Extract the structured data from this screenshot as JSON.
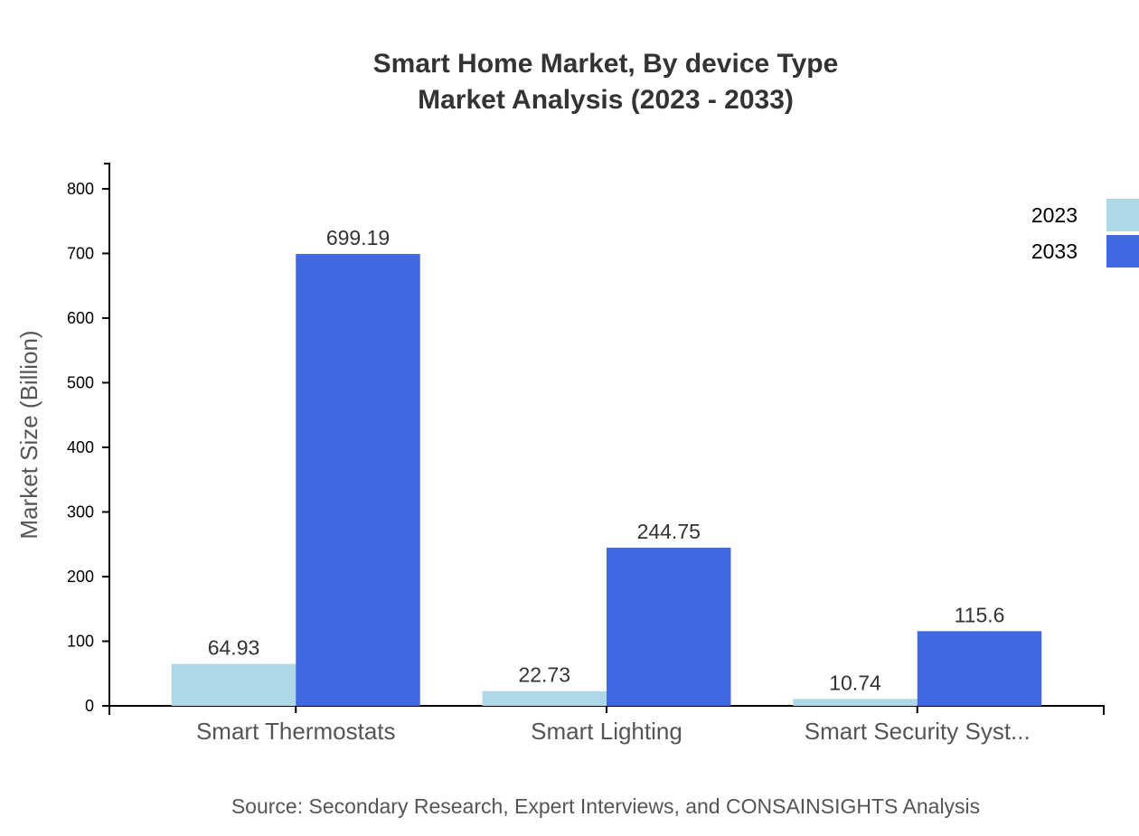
{
  "chart_data": {
    "type": "bar",
    "title": "Smart Home Market, By device Type",
    "subtitle": "Market Analysis (2023 - 2033)",
    "xlabel": "",
    "ylabel": "Market Size (Billion)",
    "categories": [
      "Smart Thermostats",
      "Smart Lighting",
      "Smart Security Syst..."
    ],
    "series": [
      {
        "name": "2023",
        "values": [
          64.93,
          22.73,
          10.74
        ],
        "color": "#add8e6"
      },
      {
        "name": "2033",
        "values": [
          699.19,
          244.75,
          115.6
        ],
        "color": "#4169e1"
      }
    ],
    "ylim": [
      0,
      839.03
    ],
    "yticks": [
      0,
      100,
      200,
      300,
      400,
      500,
      600,
      700,
      800
    ],
    "grid": false,
    "legend_position": "top-right",
    "source": "Source: Secondary Research, Expert Interviews, and CONSAINSIGHTS Analysis"
  }
}
